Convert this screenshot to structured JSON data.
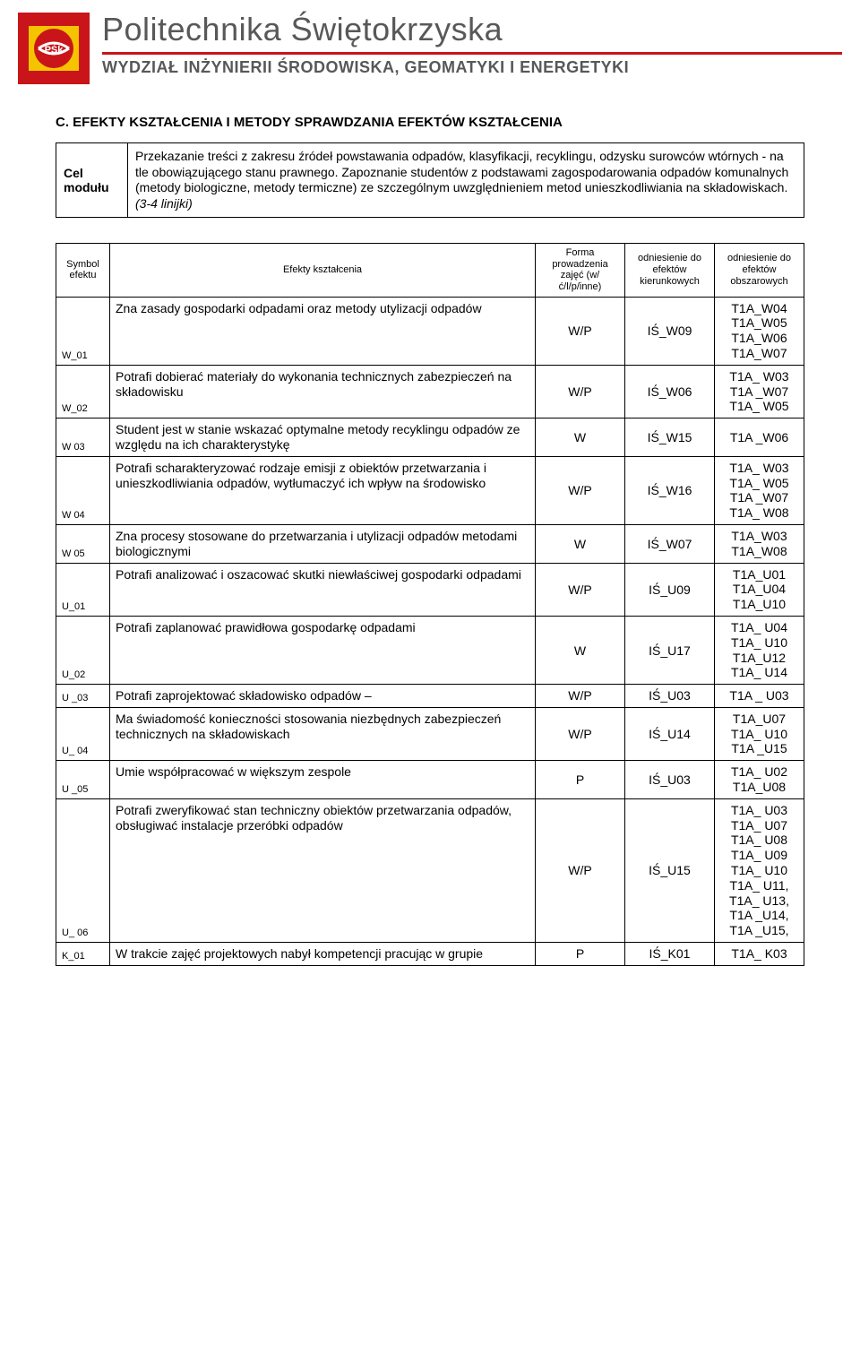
{
  "header": {
    "university": "Politechnika Świętokrzyska",
    "faculty": "WYDZIAŁ INŻYNIERII ŚRODOWISKA, GEOMATYKI I ENERGETYKI",
    "logo_colors": {
      "red": "#c91519",
      "yellow": "#f5c400",
      "gray": "#585858"
    }
  },
  "section_title": "C. EFEKTY KSZTAŁCENIA I METODY SPRAWDZANIA EFEKTÓW KSZTAŁCENIA",
  "cel": {
    "label": "Cel modułu",
    "body": "Przekazanie treści z zakresu źródeł powstawania odpadów, klasyfikacji, recyklingu, odzysku surowców wtórnych - na tle obowiązującego stanu prawnego. Zapoznanie studentów z podstawami zagospodarowania odpadów komunalnych (metody biologiczne, metody termiczne) ze szczególnym uwzględnieniem metod unieszkodliwiania na składowiskach.",
    "note": "(3-4 linijki)"
  },
  "eff_headers": {
    "sym": "Symbol efektu",
    "eff": "Efekty kształcenia",
    "form": "Forma prowadzenia zajęć (w/ć/l/p/inne)",
    "kier": "odniesienie do efektów kierunkowych",
    "obsz": "odniesienie do efektów obszarowych"
  },
  "rows": [
    {
      "sym": "W_01",
      "desc": "Zna zasady gospodarki odpadami oraz metody utylizacji odpadów",
      "form": "W/P",
      "kier": "IŚ_W09",
      "obsz": "T1A_W04 T1A_W05 T1A_W06 T1A_W07"
    },
    {
      "sym": "W_02",
      "desc": "Potrafi dobierać materiały do wykonania technicznych zabezpieczeń na składowisku",
      "form": "W/P",
      "kier": "IŚ_W06",
      "obsz": "T1A_ W03 T1A _W07 T1A_ W05"
    },
    {
      "sym": "W 03",
      "desc": "Student jest w stanie wskazać optymalne metody recyklingu odpadów ze względu na ich charakterystykę",
      "form": "W",
      "kier": "IŚ_W15",
      "obsz": "T1A _W06"
    },
    {
      "sym": "W 04",
      "desc": "Potrafi scharakteryzować rodzaje emisji z obiektów przetwarzania i unieszkodliwiania odpadów, wytłumaczyć ich wpływ na środowisko",
      "form": "W/P",
      "kier": "IŚ_W16",
      "obsz": "T1A_ W03 T1A_ W05 T1A _W07 T1A_ W08"
    },
    {
      "sym": "W 05",
      "desc": "Zna procesy stosowane do przetwarzania i utylizacji odpadów  metodami biologicznymi",
      "form": "W",
      "kier": "IŚ_W07",
      "obsz": "T1A_W03 T1A_W08"
    },
    {
      "sym": "U_01",
      "desc": "Potrafi analizować i oszacować skutki niewłaściwej gospodarki odpadami",
      "form": "W/P",
      "kier": "IŚ_U09",
      "obsz": "T1A_U01 T1A_U04 T1A_U10"
    },
    {
      "sym": "U_02",
      "desc": "Potrafi zaplanować prawidłowa gospodarkę odpadami",
      "form": "W",
      "kier": "IŚ_U17",
      "obsz": "T1A_ U04 T1A_ U10 T1A_U12 T1A_ U14"
    },
    {
      "sym": "U _03",
      "desc": "Potrafi zaprojektować składowisko odpadów –",
      "form": "W/P",
      "kier": "IŚ_U03",
      "obsz": "T1A _ U03"
    },
    {
      "sym": "U_ 04",
      "desc": "Ma świadomość konieczności stosowania niezbędnych zabezpieczeń technicznych na składowiskach",
      "form": "W/P",
      "kier": "IŚ_U14",
      "obsz": "T1A_U07 T1A_ U10 T1A _U15"
    },
    {
      "sym": "U _05",
      "desc": "Umie współpracować w  większym zespole",
      "form": "P",
      "kier": "IŚ_U03",
      "obsz": "T1A_ U02 T1A_U08"
    },
    {
      "sym": "U_ 06",
      "desc": "Potrafi zweryfikować stan techniczny obiektów przetwarzania odpadów, obsługiwać instalacje przeróbki odpadów",
      "form": "W/P",
      "kier": "IŚ_U15",
      "obsz": "T1A_ U03 T1A_ U07 T1A_ U08 T1A_ U09 T1A_ U10 T1A_ U11, T1A_ U13, T1A _U14, T1A _U15,"
    },
    {
      "sym": "K_01",
      "desc": "W trakcie zajęć projektowych nabył kompetencji pracując w grupie",
      "form": "P",
      "kier": "IŚ_K01",
      "obsz": "T1A_ K03"
    }
  ]
}
